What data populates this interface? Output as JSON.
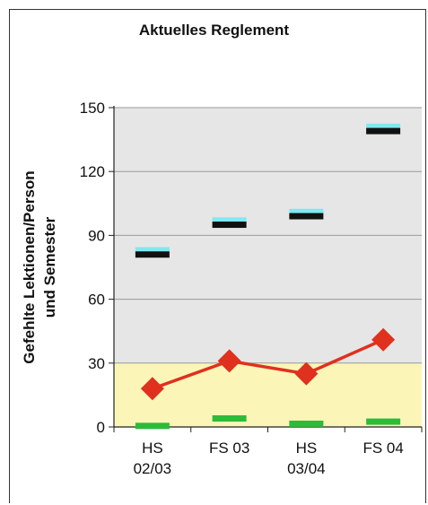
{
  "chart_data": {
    "type": "line",
    "title": "Aktuelles Reglement",
    "ylabel_line1": "Gefehlte Lektionen/Person",
    "ylabel_line2": "und Semester",
    "ylim": [
      0,
      150
    ],
    "yticks": [
      "0",
      "30",
      "60",
      "90",
      "120",
      "150"
    ],
    "ytick_values": [
      0,
      30,
      60,
      90,
      120,
      150
    ],
    "categories": [
      {
        "line1": "HS",
        "line2": "02/03"
      },
      {
        "line1": "FS 03",
        "line2": ""
      },
      {
        "line1": "HS",
        "line2": "03/04"
      },
      {
        "line1": "FS 04",
        "line2": ""
      }
    ],
    "bands": [
      {
        "from": 0,
        "to": 30,
        "color": "#fbf6b8"
      },
      {
        "from": 30,
        "to": 150,
        "color": "#e6e6e6"
      }
    ],
    "grid": true,
    "series": [
      {
        "marker": "diamond",
        "color": "#e0301e",
        "values": [
          18,
          31,
          25,
          41
        ]
      },
      {
        "marker": "dash",
        "color": "#2dbb3a",
        "values": [
          0.5,
          4,
          1.5,
          2.5
        ]
      },
      {
        "marker": "dash",
        "color": "#7fe8f0",
        "values": [
          83,
          97,
          101,
          141
        ]
      },
      {
        "marker": "dash",
        "color": "#111111",
        "values": [
          81,
          95,
          99,
          139
        ]
      }
    ]
  }
}
